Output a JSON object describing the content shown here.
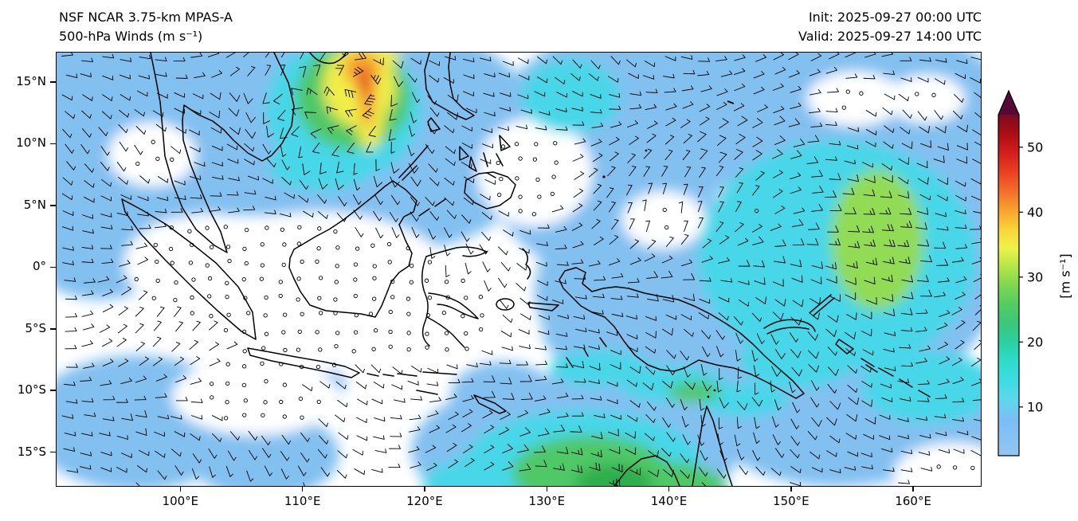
{
  "header": {
    "title_line1": "NSF NCAR 3.75-km MPAS-A",
    "title_line2": "500-hPa Winds (m s⁻¹)",
    "init_label": "Init: 2025-09-27 00:00 UTC",
    "valid_label": "Valid: 2025-09-27 14:00 UTC"
  },
  "chart_data": {
    "type": "heatmap",
    "title": "NSF NCAR 3.75-km MPAS-A 500-hPa Winds",
    "model": "NSF NCAR 3.75-km MPAS-A",
    "level_hPa": 500,
    "variable": "wind speed with wind barbs",
    "units": "m s⁻¹",
    "init_time_utc": "2025-09-27 00:00",
    "valid_time_utc": "2025-09-27 14:00",
    "x_axis": {
      "range": [
        89.8,
        165.6
      ],
      "ticks": [
        {
          "value": 100,
          "label": "100°E"
        },
        {
          "value": 110,
          "label": "110°E"
        },
        {
          "value": 120,
          "label": "120°E"
        },
        {
          "value": 130,
          "label": "130°E"
        },
        {
          "value": 140,
          "label": "140°E"
        },
        {
          "value": 150,
          "label": "150°E"
        },
        {
          "value": 160,
          "label": "160°E"
        }
      ]
    },
    "y_axis": {
      "range": [
        -17.8,
        17.45
      ],
      "ticks": [
        {
          "value": 15,
          "label": "15°N"
        },
        {
          "value": 10,
          "label": "10°N"
        },
        {
          "value": 5,
          "label": "5°N"
        },
        {
          "value": 0,
          "label": "0°"
        },
        {
          "value": -5,
          "label": "5°S"
        },
        {
          "value": -10,
          "label": "10°S"
        },
        {
          "value": -15,
          "label": "15°S"
        }
      ]
    },
    "colorbar": {
      "label": "[m s⁻¹]",
      "min": 2.5,
      "max": 55,
      "tick_values": [
        10,
        20,
        30,
        40,
        50
      ],
      "over_color": "#540a34",
      "stops": [
        {
          "v": 2.5,
          "color": "#93c6f2"
        },
        {
          "v": 8,
          "color": "#7bbdf4"
        },
        {
          "v": 11,
          "color": "#5ed7ee"
        },
        {
          "v": 14,
          "color": "#3fdce2"
        },
        {
          "v": 17,
          "color": "#2edccb"
        },
        {
          "v": 20,
          "color": "#2ccfa0"
        },
        {
          "v": 23,
          "color": "#3bc878"
        },
        {
          "v": 26,
          "color": "#55cd5f"
        },
        {
          "v": 29,
          "color": "#83d94f"
        },
        {
          "v": 32,
          "color": "#bce847"
        },
        {
          "v": 34.5,
          "color": "#eef24a"
        },
        {
          "v": 37,
          "color": "#f8d83c"
        },
        {
          "v": 40,
          "color": "#f8a82f"
        },
        {
          "v": 43,
          "color": "#f4722a"
        },
        {
          "v": 46,
          "color": "#ea4323"
        },
        {
          "v": 49,
          "color": "#d41f1c"
        },
        {
          "v": 52,
          "color": "#ab0e14"
        },
        {
          "v": 55,
          "color": "#7c0a20"
        }
      ]
    },
    "features": [
      {
        "name": "tropical-cyclone",
        "approx_lon": "113°E",
        "approx_lat": "16–17°N",
        "max_wind_ms": 40,
        "note": "compact cyclonic circulation with a 30–40 m s⁻¹ yellow/orange core near the south China coast, spiral band arcing southward"
      },
      {
        "name": "west-pacific-easterlies",
        "region": "140–165°E, 10°S–15°N",
        "wind_ms": "8–20",
        "note": "broad blue/cyan easterly flow, strongest (green, ~20 m s⁻¹) near 158°E, 0–4°S"
      },
      {
        "name": "southeast-trade-surge",
        "region": "125–143°E south of 12°S",
        "wind_ms": "15–25",
        "note": "green/cyan band of enhanced southeasterlies along the bottom of the domain"
      },
      {
        "name": "light-wind-region",
        "region": "Sumatra–Borneo–Java seas and Banda Sea",
        "wind_ms": "<5",
        "note": "large unshaded (white) region with calm circles and short barbs"
      }
    ]
  }
}
